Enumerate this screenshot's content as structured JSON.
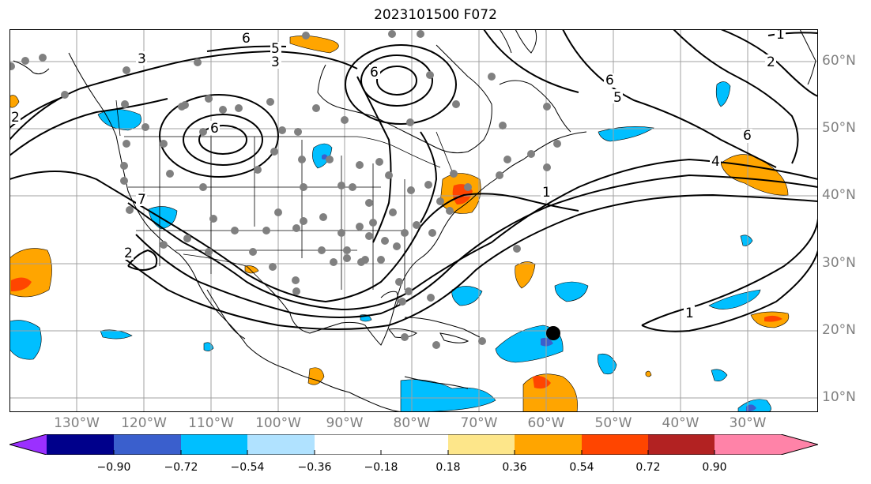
{
  "title": "2023101500 F072",
  "lat_labels": [
    "60°N",
    "50°N",
    "40°N",
    "30°N",
    "20°N",
    "10°N"
  ],
  "lon_labels": [
    "130°W",
    "120°W",
    "110°W",
    "100°W",
    "90°W",
    "80°W",
    "70°W",
    "60°W",
    "50°W",
    "40°W",
    "30°W"
  ],
  "contour_labels": [
    "3",
    "3",
    "5",
    "5",
    "6",
    "6",
    "6",
    "6",
    "6",
    "4",
    "2",
    "2",
    "1",
    "1",
    "2",
    "1",
    "7"
  ],
  "colorbar": {
    "ticks": [
      "−0.90",
      "−0.72",
      "−0.54",
      "−0.36",
      "−0.18",
      "0.18",
      "0.36",
      "0.54",
      "0.72",
      "0.90"
    ],
    "colors": [
      "#9b30ff",
      "#00008b",
      "#3a5fcd",
      "#00bfff",
      "#b0e2ff",
      "#ffffff",
      "#fde68a",
      "#ffa500",
      "#ff4500",
      "#b22222",
      "#ff83a8"
    ]
  },
  "marker_colors": {
    "station_dot": "#808080",
    "point": "#000000"
  }
}
